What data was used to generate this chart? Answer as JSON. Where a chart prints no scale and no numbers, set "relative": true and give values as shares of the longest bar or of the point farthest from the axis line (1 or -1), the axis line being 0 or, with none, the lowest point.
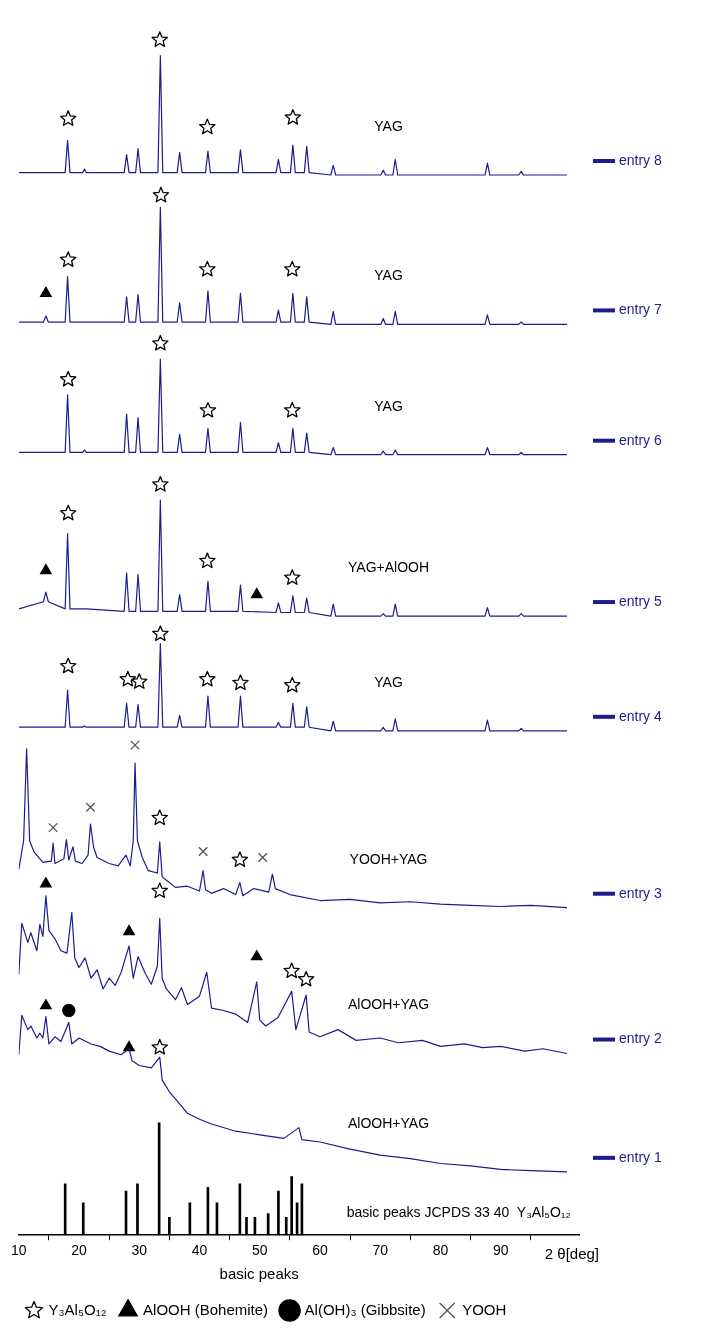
{
  "chart_data": {
    "type": "line",
    "relative": true,
    "marker": "none",
    "xlabel": "2 θ[deg]",
    "xlim": [
      10,
      103
    ],
    "xticks": [
      10,
      20,
      30,
      40,
      50,
      60,
      70,
      80,
      90
    ],
    "legend": "bottom",
    "legend_title": "basic peaks",
    "annotations": [
      "YAG",
      "YAG",
      "YAG",
      "YAG+AlOOH",
      "YAG",
      "YOOH+YAG",
      "AlOOH+YAG",
      "AlOOH+YAG",
      "basic peaks JCPDS 33 40  Y₃Al₅O₁₂"
    ],
    "series": [
      {
        "name": "entry 1",
        "color": "#1c1c8f",
        "x": [
          10,
          10.5,
          11.5,
          12,
          13,
          13.5,
          14,
          14.5,
          15,
          16,
          17,
          18.3,
          18.8,
          20,
          22,
          23.5,
          25,
          27,
          28.3,
          28.8,
          30,
          32,
          33.4,
          33.8,
          35,
          36,
          38,
          40,
          42,
          46,
          50,
          54,
          56.5,
          57,
          60,
          65,
          70,
          75,
          80,
          85,
          90,
          95,
          101
        ],
        "values": [
          0.151,
          0.184,
          0.172,
          0.175,
          0.165,
          0.169,
          0.165,
          0.183,
          0.16,
          0.166,
          0.162,
          0.178,
          0.16,
          0.165,
          0.16,
          0.158,
          0.154,
          0.151,
          0.156,
          0.146,
          0.142,
          0.14,
          0.149,
          0.13,
          0.12,
          0.114,
          0.102,
          0.097,
          0.093,
          0.087,
          0.084,
          0.081,
          0.09,
          0.08,
          0.078,
          0.072,
          0.067,
          0.064,
          0.06,
          0.058,
          0.055,
          0.054,
          0.053
        ]
      },
      {
        "name": "entry 2",
        "color": "#1c1c8f",
        "x": [
          10,
          10.5,
          11.5,
          12,
          13,
          13.5,
          14,
          14.5,
          15,
          16,
          17,
          18,
          18.8,
          19.3,
          20,
          21,
          22,
          23,
          24,
          25,
          26,
          27,
          28.3,
          29,
          29.8,
          31,
          32,
          33,
          33.4,
          33.8,
          34.5,
          36,
          37,
          38,
          40,
          41.2,
          42,
          44,
          46,
          48,
          49.5,
          50,
          51,
          53,
          55.3,
          56,
          57.7,
          58.2,
          60,
          63,
          66,
          70,
          73,
          77,
          80,
          84,
          87,
          90,
          94,
          97,
          101
        ],
        "values": [
          0.218,
          0.261,
          0.245,
          0.253,
          0.238,
          0.26,
          0.25,
          0.284,
          0.255,
          0.248,
          0.238,
          0.236,
          0.27,
          0.232,
          0.224,
          0.232,
          0.215,
          0.222,
          0.206,
          0.215,
          0.209,
          0.22,
          0.242,
          0.215,
          0.233,
          0.219,
          0.21,
          0.225,
          0.265,
          0.215,
          0.206,
          0.197,
          0.207,
          0.193,
          0.2,
          0.22,
          0.19,
          0.188,
          0.185,
          0.178,
          0.212,
          0.18,
          0.175,
          0.182,
          0.204,
          0.172,
          0.201,
          0.17,
          0.166,
          0.172,
          0.163,
          0.165,
          0.161,
          0.163,
          0.158,
          0.16,
          0.157,
          0.158,
          0.154,
          0.156,
          0.152
        ]
      },
      {
        "name": "entry 3",
        "color": "#1c1c8f",
        "x": [
          10,
          10.8,
          11.3,
          11.8,
          12.5,
          14,
          15.4,
          15.7,
          16,
          17.5,
          17.9,
          18.3,
          19,
          19.4,
          20.5,
          21.5,
          21.9,
          22.4,
          23,
          25,
          26.5,
          27.8,
          28.5,
          29,
          29.3,
          29.7,
          30.5,
          31.5,
          33,
          33.4,
          33.8,
          34.5,
          36,
          38,
          40,
          40.6,
          41,
          42,
          44,
          46,
          46.7,
          47.2,
          49,
          51.5,
          52.1,
          52.6,
          55,
          60,
          65,
          70,
          75,
          80,
          85,
          90,
          95,
          101
        ],
        "values": [
          0.306,
          0.33,
          0.407,
          0.33,
          0.321,
          0.312,
          0.313,
          0.328,
          0.311,
          0.315,
          0.331,
          0.314,
          0.325,
          0.313,
          0.311,
          0.318,
          0.344,
          0.325,
          0.316,
          0.311,
          0.309,
          0.318,
          0.309,
          0.33,
          0.395,
          0.33,
          0.316,
          0.305,
          0.303,
          0.329,
          0.3,
          0.297,
          0.291,
          0.292,
          0.288,
          0.305,
          0.289,
          0.286,
          0.29,
          0.285,
          0.295,
          0.284,
          0.29,
          0.287,
          0.302,
          0.29,
          0.285,
          0.28,
          0.281,
          0.278,
          0.279,
          0.277,
          0.276,
          0.275,
          0.276,
          0.274
        ]
      },
      {
        "name": "entry 4",
        "color": "#1c1c8f",
        "x": [
          10,
          14.1,
          14.5,
          14.9,
          17.7,
          18.1,
          18.5,
          20.6,
          20.9,
          21.2,
          27.5,
          27.9,
          28.3,
          29.4,
          29.8,
          30.2,
          33.1,
          33.5,
          33.9,
          36.3,
          36.7,
          37.1,
          41,
          41.4,
          41.8,
          46.4,
          46.8,
          47.2,
          52.7,
          53.1,
          53.5,
          55.1,
          55.5,
          55.9,
          57.4,
          57.8,
          58.2,
          61.8,
          62.2,
          62.6,
          70.1,
          70.5,
          70.9,
          72.1,
          72.5,
          72.9,
          87.4,
          87.8,
          88.2,
          93,
          93.4,
          93.8,
          101
        ],
        "values": [
          0.425,
          0.425,
          0.425,
          0.425,
          0.425,
          0.456,
          0.425,
          0.425,
          0.426,
          0.425,
          0.425,
          0.445,
          0.425,
          0.425,
          0.444,
          0.425,
          0.425,
          0.495,
          0.425,
          0.425,
          0.435,
          0.425,
          0.425,
          0.451,
          0.425,
          0.425,
          0.451,
          0.425,
          0.425,
          0.429,
          0.425,
          0.425,
          0.445,
          0.425,
          0.425,
          0.442,
          0.425,
          0.422,
          0.43,
          0.422,
          0.422,
          0.425,
          0.422,
          0.422,
          0.432,
          0.422,
          0.422,
          0.431,
          0.422,
          0.422,
          0.424,
          0.422,
          0.422
        ]
      },
      {
        "name": "entry 5",
        "color": "#1c1c8f",
        "x": [
          10,
          14.1,
          14.5,
          14.9,
          17.7,
          18.1,
          18.5,
          20.6,
          20.9,
          21.2,
          27.5,
          27.9,
          28.3,
          29.4,
          29.8,
          30.2,
          33.1,
          33.5,
          33.9,
          36.3,
          36.7,
          37.1,
          41,
          41.4,
          41.8,
          46.4,
          46.8,
          47.2,
          52.7,
          53.1,
          53.5,
          55.1,
          55.5,
          55.9,
          57.4,
          57.8,
          58.2,
          61.8,
          62.2,
          62.6,
          70.1,
          70.5,
          70.9,
          72.1,
          72.5,
          72.9,
          87.4,
          87.8,
          88.2,
          93,
          93.4,
          93.8,
          101
        ],
        "values": [
          0.524,
          0.53,
          0.538,
          0.53,
          0.524,
          0.587,
          0.524,
          0.524,
          0.524,
          0.524,
          0.522,
          0.554,
          0.522,
          0.522,
          0.553,
          0.522,
          0.522,
          0.615,
          0.522,
          0.522,
          0.536,
          0.522,
          0.522,
          0.547,
          0.522,
          0.522,
          0.544,
          0.522,
          0.521,
          0.529,
          0.521,
          0.521,
          0.535,
          0.521,
          0.521,
          0.533,
          0.521,
          0.518,
          0.528,
          0.518,
          0.518,
          0.52,
          0.518,
          0.518,
          0.528,
          0.518,
          0.518,
          0.525,
          0.518,
          0.518,
          0.52,
          0.518,
          0.518
        ]
      },
      {
        "name": "entry 6",
        "color": "#1c1c8f",
        "x": [
          10,
          14.1,
          14.5,
          14.9,
          17.7,
          18.1,
          18.5,
          20.6,
          20.9,
          21.2,
          27.5,
          27.9,
          28.3,
          29.4,
          29.8,
          30.2,
          33.1,
          33.5,
          33.9,
          36.3,
          36.7,
          37.1,
          41,
          41.4,
          41.8,
          46.4,
          46.8,
          47.2,
          52.7,
          53.1,
          53.5,
          55.1,
          55.5,
          55.9,
          57.4,
          57.8,
          58.2,
          61.8,
          62.2,
          62.6,
          70.1,
          70.5,
          70.9,
          72.1,
          72.5,
          72.9,
          87.4,
          87.8,
          88.2,
          93,
          93.4,
          93.8,
          101
        ],
        "values": [
          0.655,
          0.655,
          0.655,
          0.655,
          0.655,
          0.703,
          0.655,
          0.655,
          0.657,
          0.655,
          0.655,
          0.687,
          0.655,
          0.655,
          0.684,
          0.655,
          0.655,
          0.733,
          0.655,
          0.655,
          0.67,
          0.655,
          0.655,
          0.675,
          0.655,
          0.655,
          0.68,
          0.655,
          0.655,
          0.663,
          0.655,
          0.655,
          0.675,
          0.655,
          0.655,
          0.671,
          0.655,
          0.653,
          0.659,
          0.653,
          0.653,
          0.656,
          0.653,
          0.653,
          0.657,
          0.653,
          0.653,
          0.659,
          0.653,
          0.653,
          0.655,
          0.653,
          0.653
        ]
      },
      {
        "name": "entry 7",
        "color": "#1c1c8f",
        "x": [
          10,
          14.1,
          14.5,
          14.9,
          17.7,
          18.1,
          18.5,
          20.6,
          20.9,
          21.2,
          27.5,
          27.9,
          28.3,
          29.4,
          29.8,
          30.2,
          33.1,
          33.5,
          33.9,
          36.3,
          36.7,
          37.1,
          41,
          41.4,
          41.8,
          46.4,
          46.8,
          47.2,
          52.7,
          53.1,
          53.5,
          55.1,
          55.5,
          55.9,
          57.4,
          57.8,
          58.2,
          61.8,
          62.2,
          62.6,
          70.1,
          70.5,
          70.9,
          72.1,
          72.5,
          72.9,
          87.4,
          87.8,
          88.2,
          93,
          93.4,
          93.8,
          101
        ],
        "values": [
          0.764,
          0.764,
          0.769,
          0.764,
          0.764,
          0.802,
          0.764,
          0.764,
          0.764,
          0.764,
          0.764,
          0.785,
          0.764,
          0.764,
          0.787,
          0.764,
          0.764,
          0.86,
          0.764,
          0.764,
          0.78,
          0.764,
          0.764,
          0.79,
          0.764,
          0.764,
          0.788,
          0.764,
          0.764,
          0.774,
          0.764,
          0.764,
          0.788,
          0.764,
          0.764,
          0.785,
          0.764,
          0.762,
          0.773,
          0.762,
          0.762,
          0.767,
          0.762,
          0.762,
          0.773,
          0.762,
          0.762,
          0.77,
          0.762,
          0.762,
          0.764,
          0.762,
          0.762
        ]
      },
      {
        "name": "entry 8",
        "color": "#1c1c8f",
        "x": [
          10,
          14.1,
          14.5,
          14.9,
          17.7,
          18.1,
          18.5,
          20.6,
          20.9,
          21.2,
          27.5,
          27.9,
          28.3,
          29.4,
          29.8,
          30.2,
          33.1,
          33.5,
          33.9,
          36.3,
          36.7,
          37.1,
          41,
          41.4,
          41.8,
          46.4,
          46.8,
          47.2,
          52.7,
          53.1,
          53.5,
          55.1,
          55.5,
          55.9,
          57.4,
          57.8,
          58.2,
          61.8,
          62.2,
          62.6,
          70.1,
          70.5,
          70.9,
          72.1,
          72.5,
          72.9,
          87.4,
          87.8,
          88.2,
          93,
          93.4,
          93.8,
          101
        ],
        "values": [
          0.889,
          0.889,
          0.889,
          0.889,
          0.889,
          0.916,
          0.889,
          0.889,
          0.892,
          0.889,
          0.889,
          0.904,
          0.889,
          0.889,
          0.909,
          0.889,
          0.889,
          0.987,
          0.889,
          0.889,
          0.906,
          0.889,
          0.889,
          0.907,
          0.889,
          0.889,
          0.908,
          0.889,
          0.889,
          0.9,
          0.889,
          0.889,
          0.912,
          0.889,
          0.889,
          0.911,
          0.889,
          0.887,
          0.895,
          0.887,
          0.887,
          0.891,
          0.887,
          0.887,
          0.9,
          0.887,
          0.887,
          0.897,
          0.887,
          0.887,
          0.89,
          0.887,
          0.887
        ]
      },
      {
        "type": "bar",
        "color": "#000000",
        "x": [
          17.7,
          20.7,
          27.8,
          29.7,
          33.3,
          35,
          38.4,
          41.4,
          42.9,
          46.7,
          47.8,
          49.2,
          51.4,
          53.1,
          54.4,
          55.3,
          56.2,
          57
        ],
        "values": [
          0.043,
          0.027,
          0.037,
          0.043,
          0.094,
          0.015,
          0.027,
          0.04,
          0.027,
          0.043,
          0.015,
          0.015,
          0.018,
          0.037,
          0.015,
          0.049,
          0.027,
          0.043
        ]
      },
      {
        "type": "scatter",
        "name": "Y₃Al₅O₁₂",
        "marker": "star",
        "color": "#000000",
        "x": [
          18.2,
          33.4,
          41.3,
          55.5,
          18.2,
          33.6,
          41.3,
          55.4,
          18.2,
          33.5,
          41.4,
          55.4,
          18.2,
          33.5,
          41.3,
          55.4,
          18.2,
          28.1,
          30,
          33.5,
          41.3,
          46.8,
          55.4,
          33.4,
          46.7,
          33.4,
          55.3,
          57.7,
          33.4
        ],
        "values": [
          0.934,
          1.0,
          0.927,
          0.935,
          0.816,
          0.87,
          0.808,
          0.808,
          0.716,
          0.746,
          0.69,
          0.69,
          0.604,
          0.628,
          0.564,
          0.55,
          0.476,
          0.465,
          0.463,
          0.503,
          0.465,
          0.462,
          0.46,
          0.349,
          0.314,
          0.288,
          0.221,
          0.214,
          0.157
        ]
      },
      {
        "type": "scatter",
        "name": "AlOOH (Bohemite)",
        "marker": "triangle",
        "color": "#000000",
        "x": [
          14.5,
          14.5,
          49.5,
          14.5,
          28.3,
          49.5,
          14.5,
          28.3
        ],
        "values": [
          0.788,
          0.556,
          0.536,
          0.294,
          0.254,
          0.233,
          0.192,
          0.157
        ]
      },
      {
        "type": "scatter",
        "name": "Al(OH)₃ (Gibbsite)",
        "marker": "circle",
        "color": "#000000",
        "x": [
          18.3
        ],
        "values": [
          0.188
        ]
      },
      {
        "type": "scatter",
        "name": "YOOH",
        "marker": "cross",
        "color": "#555555",
        "x": [
          15.7,
          21.9,
          29.3,
          40.6,
          50.5
        ],
        "values": [
          0.341,
          0.358,
          0.41,
          0.321,
          0.316
        ]
      }
    ]
  }
}
